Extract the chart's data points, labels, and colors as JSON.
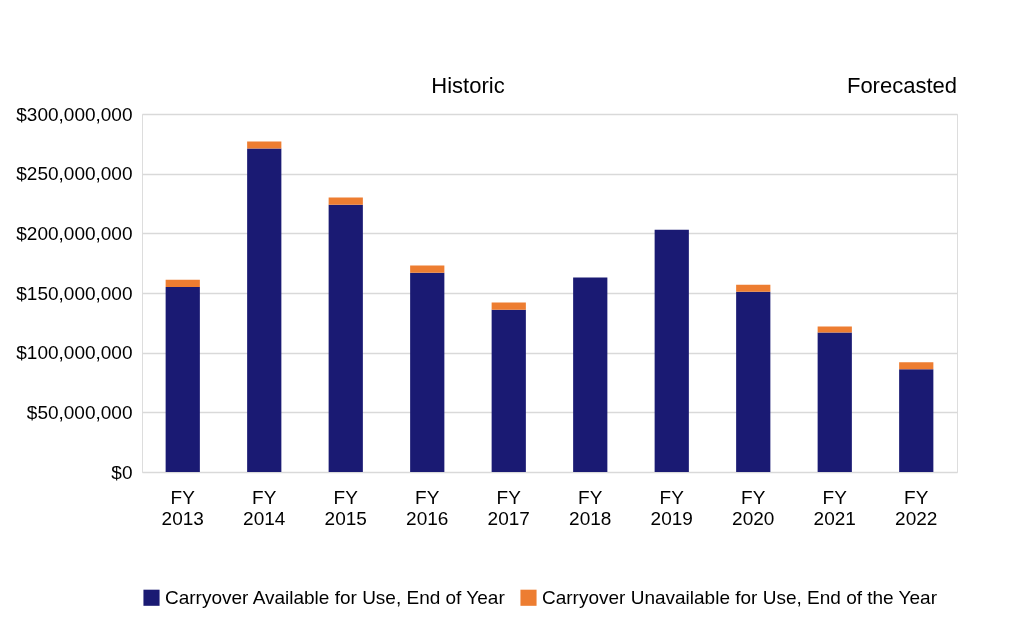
{
  "chart_data": {
    "type": "bar",
    "stacked": true,
    "categories": [
      "FY 2013",
      "FY 2014",
      "FY 2015",
      "FY 2016",
      "FY 2017",
      "FY 2018",
      "FY 2019",
      "FY 2020",
      "FY 2021",
      "FY 2022"
    ],
    "series": [
      {
        "name": "Carryover Available for Use, End of Year",
        "color": "#1a1a73",
        "values": [
          155000000,
          271000000,
          224000000,
          167000000,
          136000000,
          163000000,
          203000000,
          151000000,
          117000000,
          86000000
        ]
      },
      {
        "name": "Carryover Unavailable for Use, End of the Year",
        "color": "#ed7d31",
        "values": [
          6000000,
          6000000,
          6000000,
          6000000,
          6000000,
          0,
          0,
          6000000,
          5000000,
          6000000
        ]
      }
    ],
    "ylim": [
      0,
      300000000
    ],
    "yticks": [
      {
        "value": 0,
        "label": "$0"
      },
      {
        "value": 50000000,
        "label": "$50,000,000"
      },
      {
        "value": 100000000,
        "label": "$100,000,000"
      },
      {
        "value": 150000000,
        "label": "$150,000,000"
      },
      {
        "value": 200000000,
        "label": "$200,000,000"
      },
      {
        "value": 250000000,
        "label": "$250,000,000"
      },
      {
        "value": 300000000,
        "label": "$300,000,000"
      }
    ],
    "grid": "y",
    "legend": "bottom",
    "annotations": [
      "Historic",
      "Forecasted"
    ]
  }
}
